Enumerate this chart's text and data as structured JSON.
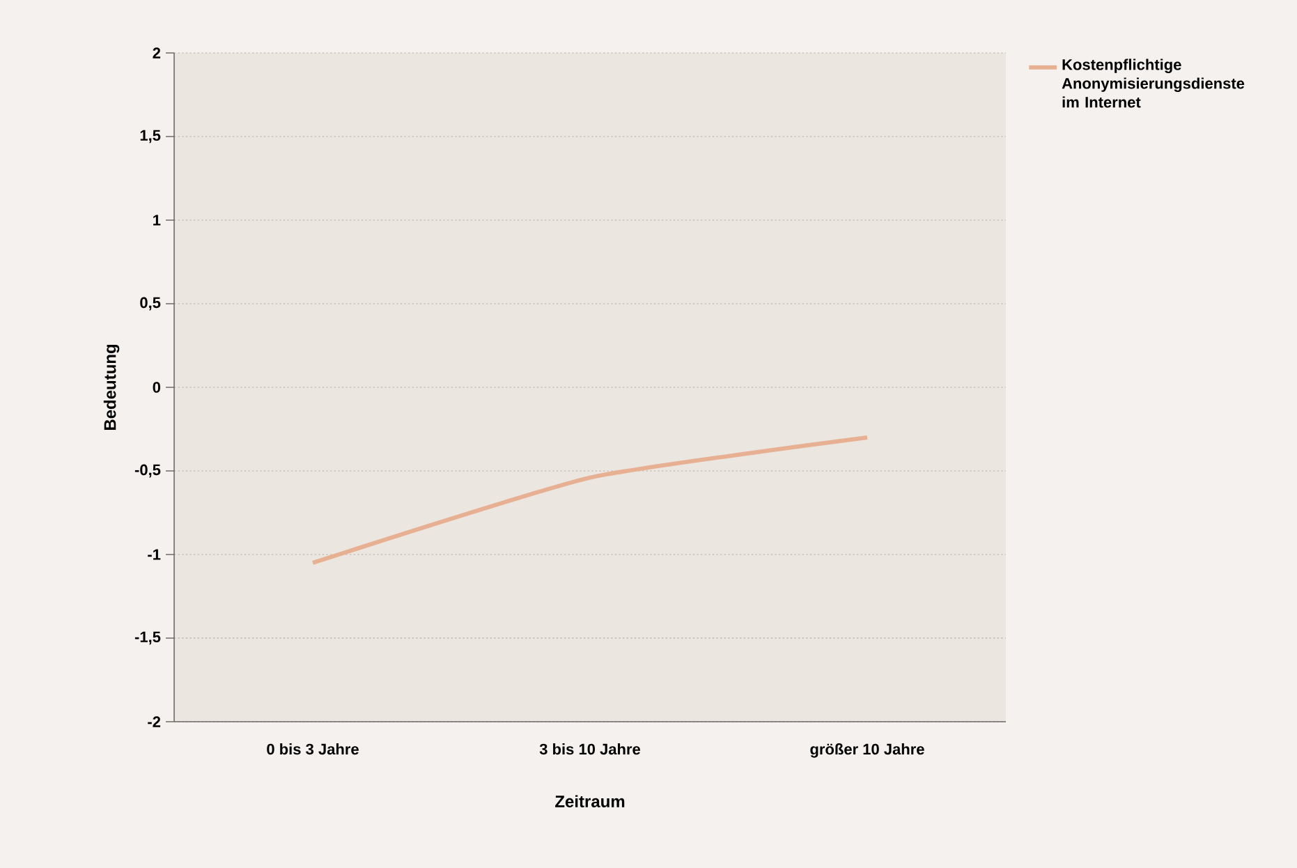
{
  "chart_data": {
    "type": "line",
    "xlabel": "Zeitraum",
    "ylabel": "Bedeutung",
    "categories": [
      "0 bis 3 Jahre",
      "3 bis 10 Jahre",
      "größer 10 Jahre"
    ],
    "series": [
      {
        "name": "Kostenpflichtige Anonymisierungsdienste im Internet",
        "color": "#e8b092",
        "values": [
          -1.05,
          -0.54,
          -0.3
        ]
      }
    ],
    "ylim": [
      -2,
      2
    ],
    "yticks": [
      -2,
      {
        "value": -1.5,
        "label": "-1,5"
      },
      -1,
      {
        "value": -0.5,
        "label": "-0,5"
      },
      0,
      {
        "value": 0.5,
        "label": "0,5"
      },
      1,
      {
        "value": 1.5,
        "label": "1,5"
      },
      2
    ],
    "grid": "y",
    "legend": "top right",
    "marker": "none",
    "line_style": "solid"
  }
}
